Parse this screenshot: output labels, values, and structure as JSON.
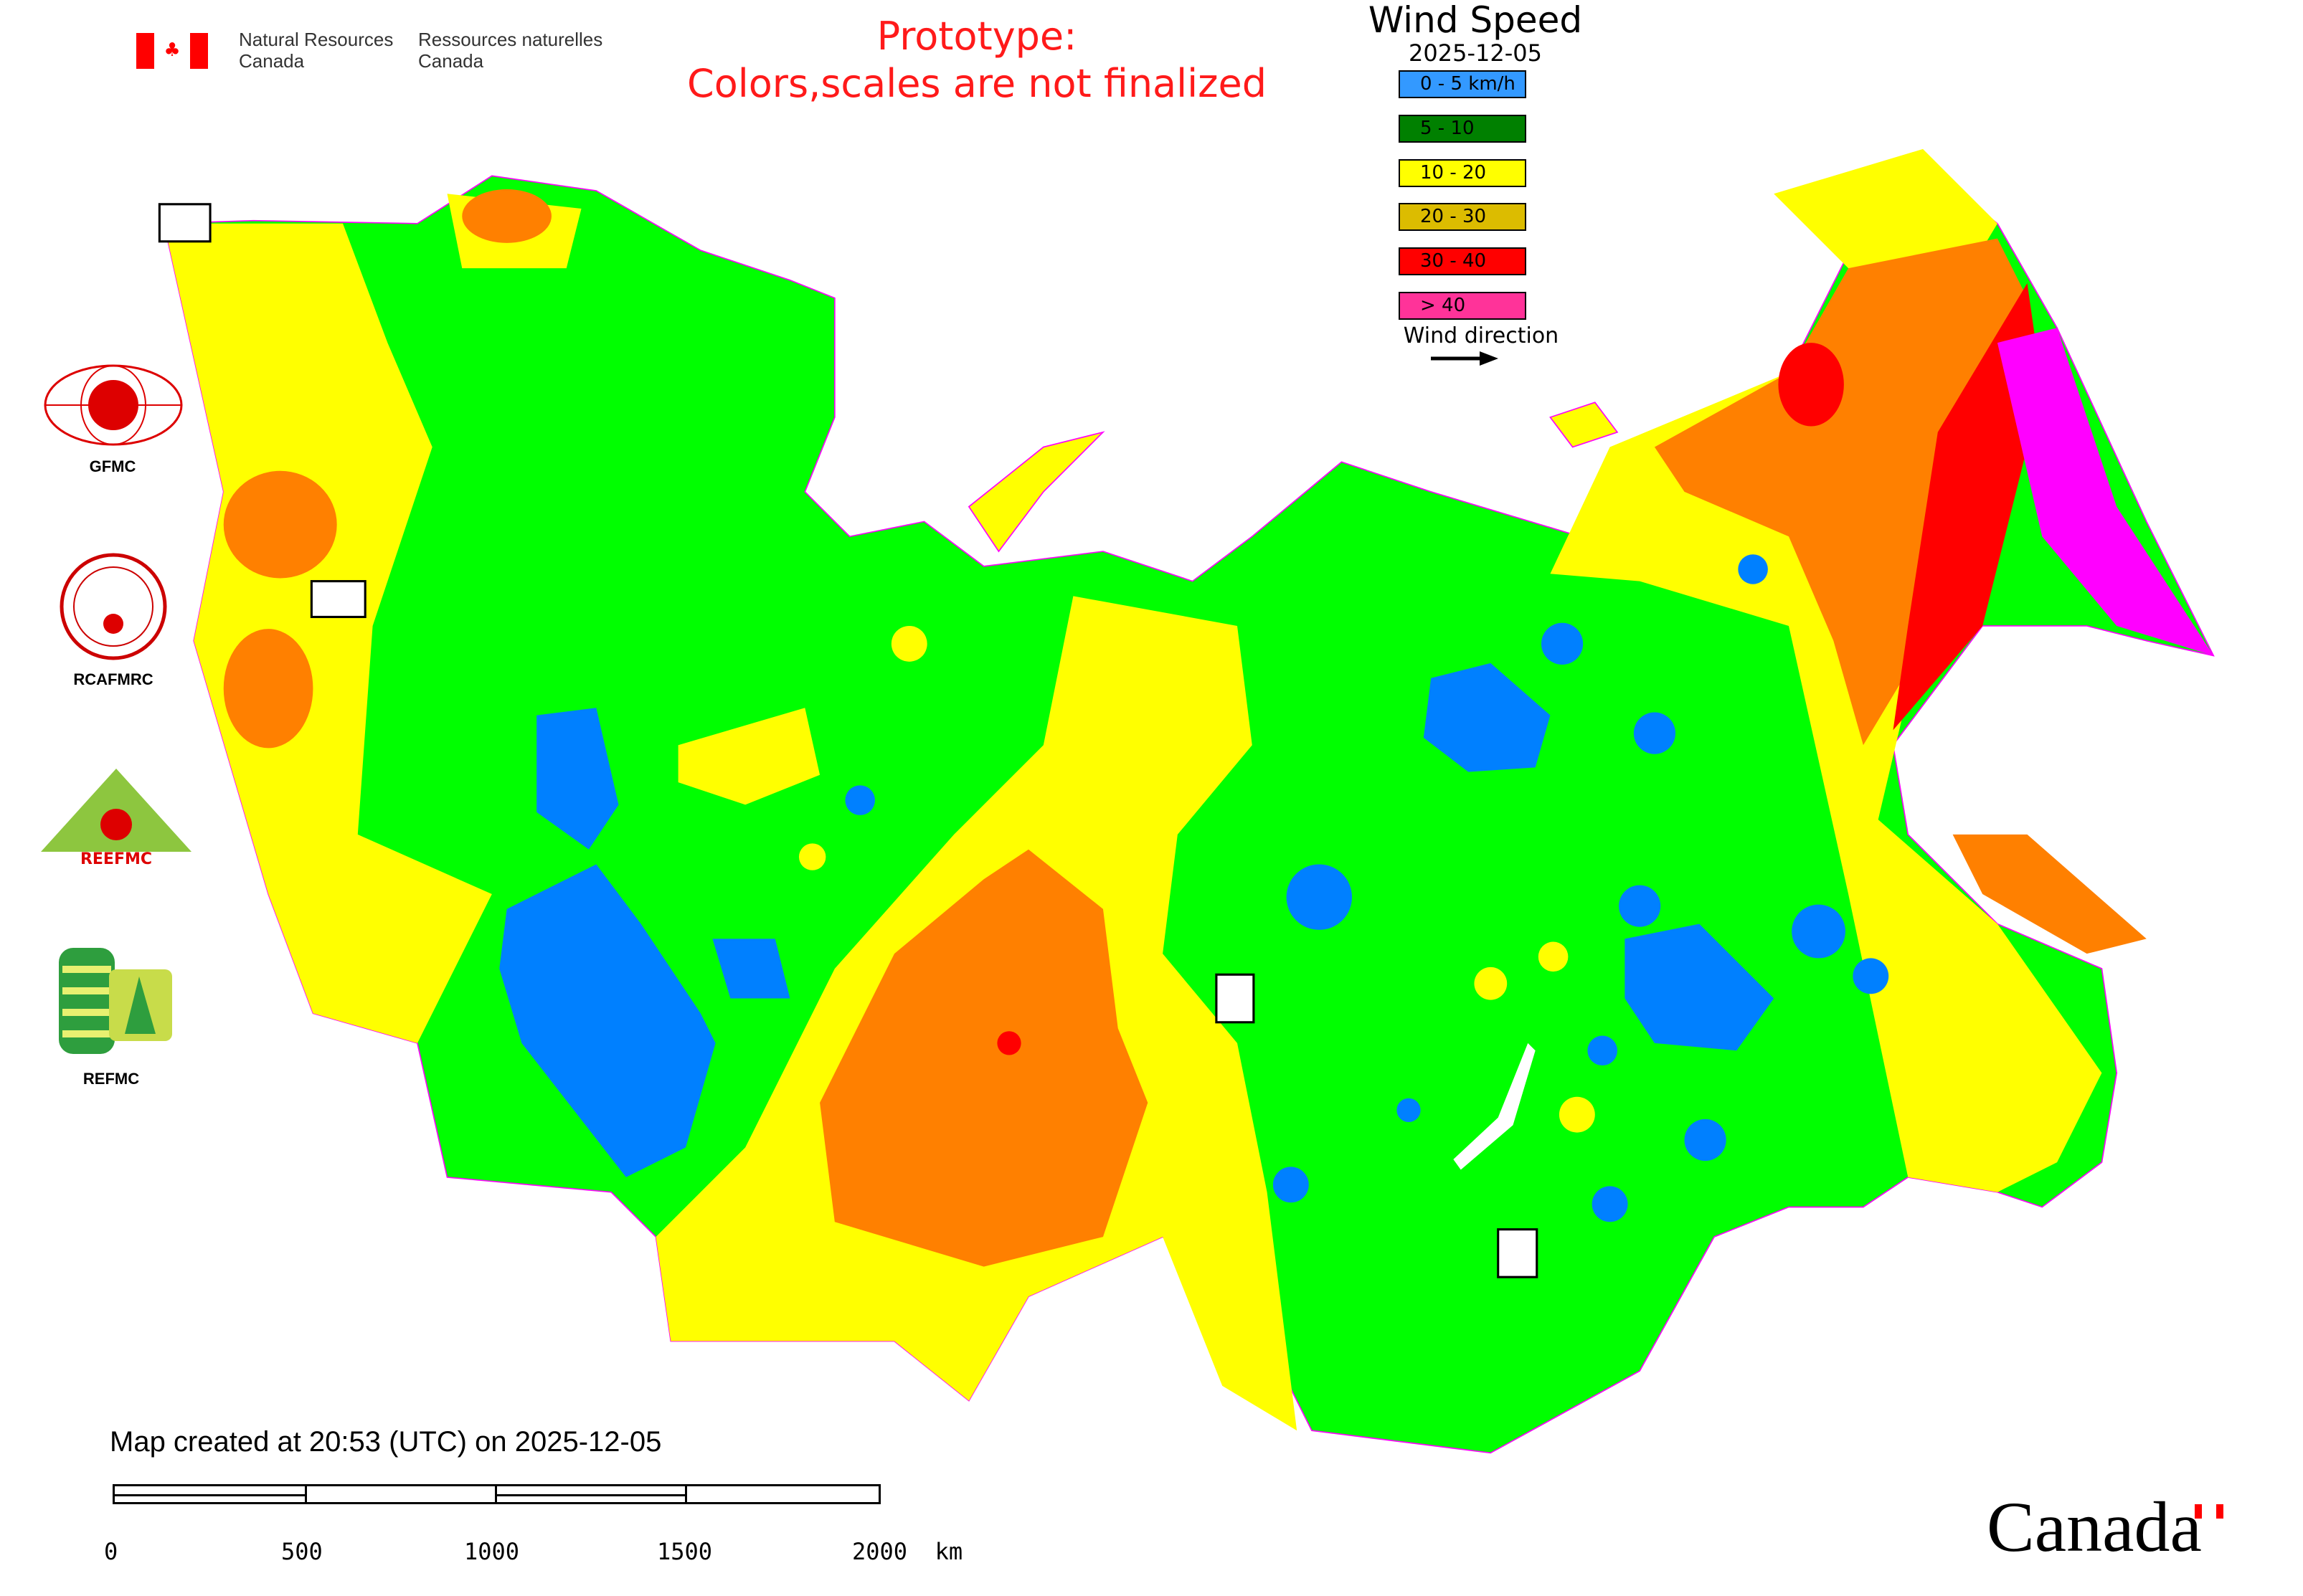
{
  "header": {
    "agency_en_line1": "Natural Resources",
    "agency_en_line2": "Canada",
    "agency_fr_line1": "Ressources naturelles",
    "agency_fr_line2": "Canada",
    "notice_line1": "Prototype:",
    "notice_line2": "Colors,scales are not finalized"
  },
  "legend": {
    "title": "Wind Speed",
    "date": "2025-12-05",
    "items": [
      {
        "label": "0 - 5 km/h",
        "color": "#3399ff"
      },
      {
        "label": "5 - 10",
        "color": "#008000"
      },
      {
        "label": "10 - 20",
        "color": "#ffff00"
      },
      {
        "label": "20 - 30",
        "color": "#dcbc00"
      },
      {
        "label": "30 - 40",
        "color": "#ff0000"
      },
      {
        "label": "> 40",
        "color": "#ff3399"
      }
    ],
    "direction_label": "Wind direction",
    "direction_icon": "arrow-right-icon"
  },
  "map_colors": {
    "calm": "#0080ff",
    "light": "#00ff00",
    "moderate": "#ffff00",
    "strong": "#ff8000",
    "very_strong": "#ff0000",
    "extreme": "#ff00ff",
    "border": "#ff00ff"
  },
  "partners": [
    {
      "label": "GFMC"
    },
    {
      "label": "RCAFMRC"
    },
    {
      "label": "REEFMC"
    },
    {
      "label": "REFMC"
    }
  ],
  "footer": {
    "created": "Map created at 20:53 (UTC) on 2025-12-05",
    "scale_labels": [
      "0",
      "500",
      "1000",
      "1500",
      "2000  km"
    ],
    "wordmark": "Canada"
  }
}
